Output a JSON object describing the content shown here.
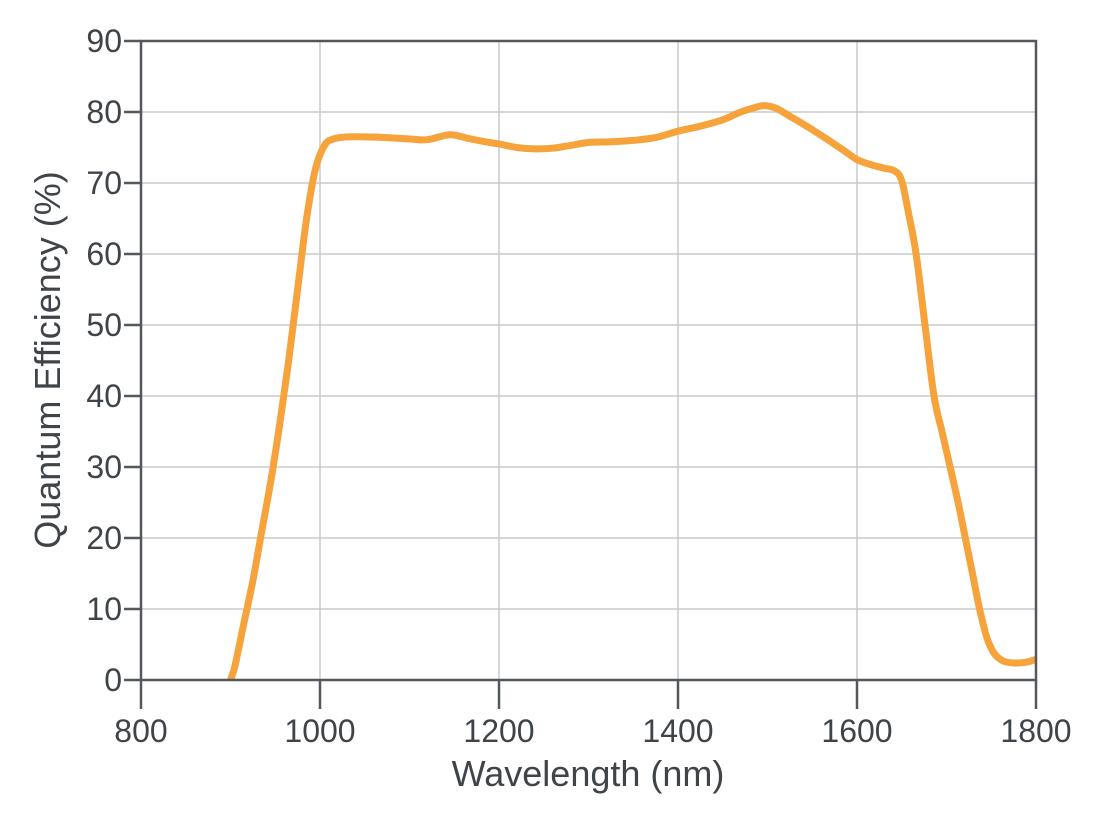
{
  "figure": {
    "background_color": "#FFFFFF"
  },
  "style": {
    "curve_color": "#F6A33C",
    "curve_width": 7,
    "frame_color": "#54585C",
    "frame_width": 2.5,
    "grid_color": "#C7CACC",
    "grid_width": 1.5,
    "tick_color": "#54585C",
    "text_color": "#3F4449"
  },
  "chart_data": {
    "type": "line",
    "xlabel": "Wavelength (nm)",
    "ylabel": "Quantum Efficiency (%)",
    "xlim": [
      800,
      1800
    ],
    "ylim": [
      0,
      90
    ],
    "xticks": [
      800,
      1000,
      1200,
      1400,
      1600,
      1800
    ],
    "yticks": [
      0,
      10,
      20,
      30,
      40,
      50,
      60,
      70,
      80,
      90
    ],
    "grid": true,
    "framed": true,
    "legend": "none",
    "series": [
      {
        "x": [
          900,
          905,
          915,
          925,
          935,
          945,
          955,
          965,
          975,
          985,
          995,
          1005,
          1015,
          1030,
          1050,
          1075,
          1100,
          1120,
          1145,
          1165,
          1185,
          1200,
          1220,
          1240,
          1260,
          1280,
          1300,
          1325,
          1350,
          1375,
          1400,
          1425,
          1450,
          1470,
          1485,
          1497,
          1510,
          1525,
          1545,
          1565,
          1585,
          1600,
          1615,
          1630,
          1642,
          1650,
          1658,
          1666,
          1676,
          1686,
          1695,
          1704,
          1713,
          1721,
          1729,
          1737,
          1745,
          1753,
          1763,
          1775,
          1788,
          1800
        ],
        "y": [
          0,
          2,
          8,
          14,
          21,
          28,
          36,
          45,
          55,
          65,
          72,
          75.3,
          76.2,
          76.5,
          76.5,
          76.4,
          76.2,
          76.1,
          76.8,
          76.3,
          75.8,
          75.5,
          75.0,
          74.8,
          74.9,
          75.3,
          75.7,
          75.8,
          76.0,
          76.4,
          77.3,
          78.0,
          78.9,
          80.0,
          80.6,
          80.9,
          80.5,
          79.4,
          77.9,
          76.3,
          74.6,
          73.3,
          72.6,
          72.1,
          71.7,
          70.3,
          65.5,
          60,
          50,
          40,
          35,
          30,
          25,
          20,
          15,
          10,
          6,
          3.8,
          2.7,
          2.4,
          2.5,
          2.9
        ]
      }
    ]
  }
}
